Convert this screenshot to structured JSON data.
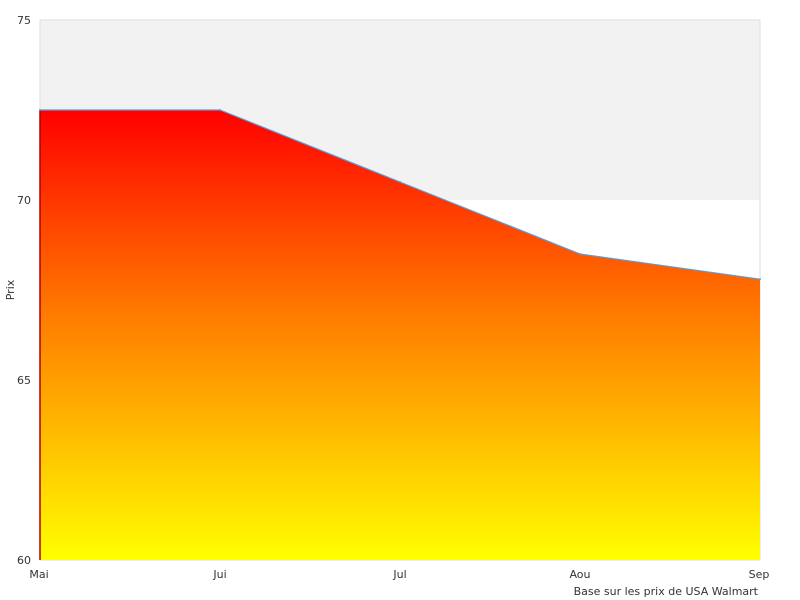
{
  "chart_data": {
    "type": "area",
    "categories": [
      "Mai",
      "Jui",
      "Jul",
      "Aou",
      "Sep"
    ],
    "series": [
      {
        "values": [
          72.5,
          72.5,
          70.5,
          68.5,
          67.8
        ]
      }
    ],
    "ylabel": "Prix",
    "xlabel": "",
    "ylim": [
      60,
      75
    ],
    "y_ticks": [
      60,
      65,
      70,
      75
    ],
    "footnote": "Base sur les prix de USA Walmart",
    "grid": "alternating horizontal bands",
    "colors": {
      "fill_top": "#ff0000",
      "fill_mid": "#ff7a00",
      "fill_bottom": "#ffff00",
      "line": "#5b9bd5",
      "band": "#f2f2f2",
      "frame": "#dddddd"
    }
  }
}
